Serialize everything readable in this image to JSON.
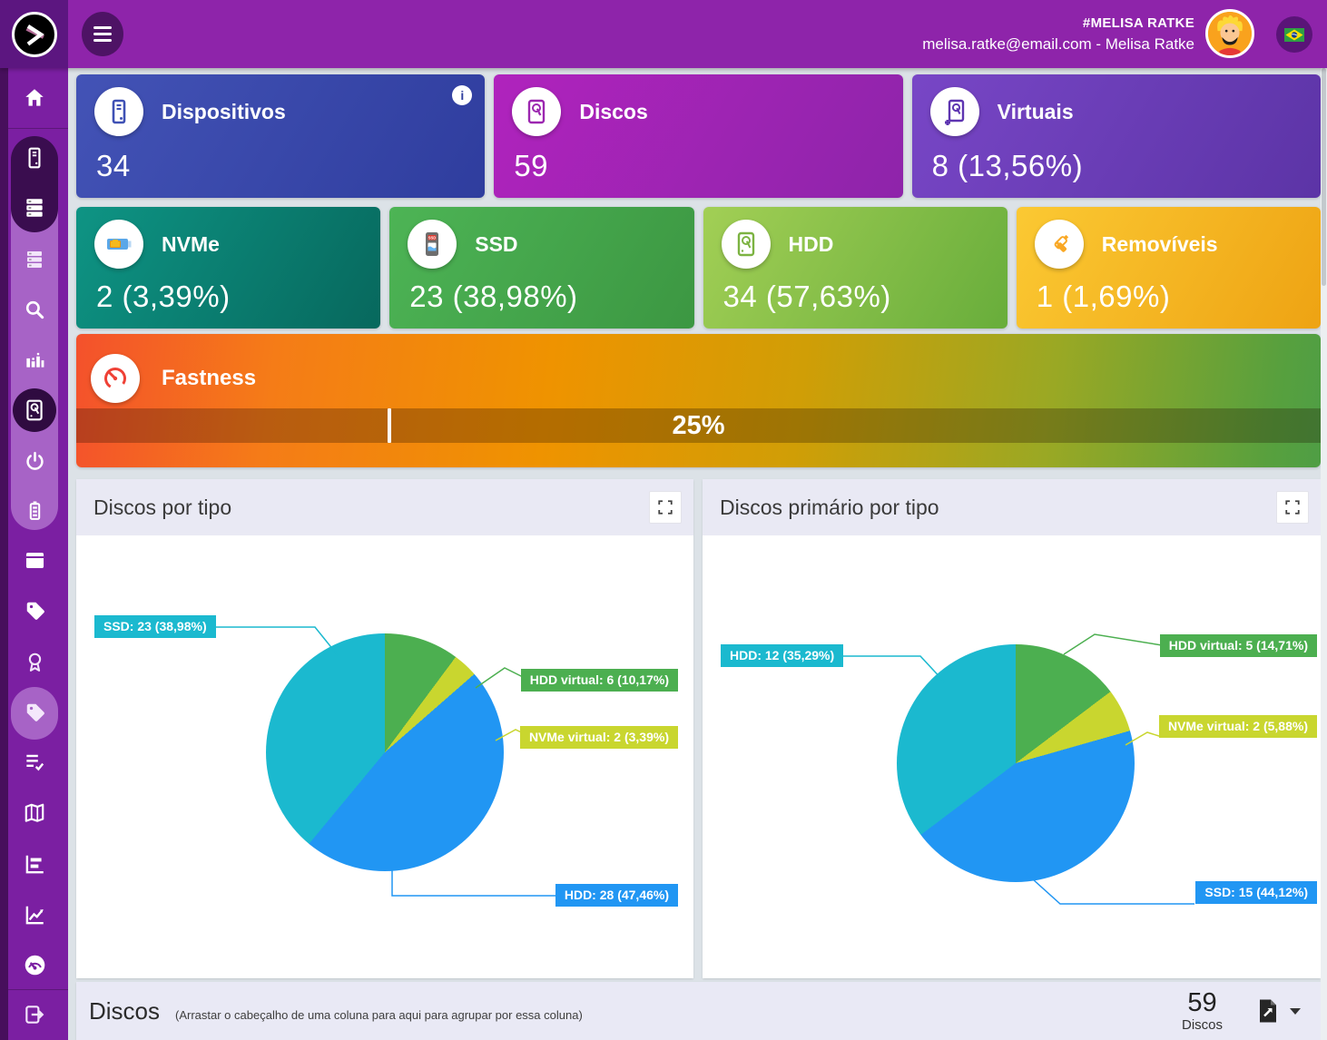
{
  "topbar": {
    "user_name_line": "#MELISA RATKE",
    "user_email_line": "melisa.ratke@email.com - Melisa Ratke"
  },
  "sidebar": {
    "items": [
      "home",
      "devices",
      "disks",
      "disks-list",
      "search",
      "statistics",
      "disk-active",
      "power",
      "battery",
      "window",
      "tag",
      "certificate",
      "tag-alt",
      "tasks",
      "map",
      "bar-chart",
      "line-chart",
      "gauge",
      "logout"
    ]
  },
  "cards": {
    "dispositivos": {
      "label": "Dispositivos",
      "value": "34",
      "icon": "device-tower-icon",
      "accent": "#3f51b5"
    },
    "discos": {
      "label": "Discos",
      "value": "59",
      "icon": "hard-disk-icon",
      "accent": "#9c27b0"
    },
    "virtuais": {
      "label": "Virtuais",
      "value": "8 (13,56%)",
      "icon": "virtual-disk-icon",
      "accent": "#5e35b1"
    },
    "nvme": {
      "label": "NVMe",
      "value": "2 (3,39%)",
      "icon": "nvme-icon",
      "accent": "#0e9484"
    },
    "ssd": {
      "label": "SSD",
      "value": "23 (38,98%)",
      "icon": "ssd-icon",
      "accent": "#43a047"
    },
    "hdd": {
      "label": "HDD",
      "value": "34 (57,63%)",
      "icon": "hdd-icon",
      "accent": "#7cb342"
    },
    "removiveis": {
      "label": "Removíveis",
      "value": "1 (1,69%)",
      "icon": "usb-drives-icon",
      "accent": "#f9a825"
    }
  },
  "fastness": {
    "label": "Fastness",
    "value_label": "25%",
    "percent": 25,
    "icon": "speedometer-icon"
  },
  "chart_data": [
    {
      "type": "pie",
      "title": "Discos por tipo",
      "total": 59,
      "legend_position": "outside-callout",
      "direction": "clockwise-from-top",
      "slices": [
        {
          "label": "HDD virtual",
          "value": 6,
          "percent_label": "10,17%",
          "display": "HDD virtual: 6 (10,17%)",
          "color": "#4caf50"
        },
        {
          "label": "NVMe virtual",
          "value": 2,
          "percent_label": "3,39%",
          "display": "NVMe virtual: 2 (3,39%)",
          "color": "#c9d62f"
        },
        {
          "label": "HDD",
          "value": 28,
          "percent_label": "47,46%",
          "display": "HDD: 28 (47,46%)",
          "color": "#2196f3"
        },
        {
          "label": "SSD",
          "value": 23,
          "percent_label": "38,98%",
          "display": "SSD: 23 (38,98%)",
          "color": "#1bb9cf"
        }
      ]
    },
    {
      "type": "pie",
      "title": "Discos primário por tipo",
      "total": 34,
      "legend_position": "outside-callout",
      "direction": "clockwise-from-top",
      "slices": [
        {
          "label": "HDD virtual",
          "value": 5,
          "percent_label": "14,71%",
          "display": "HDD virtual: 5 (14,71%)",
          "color": "#4caf50"
        },
        {
          "label": "NVMe virtual",
          "value": 2,
          "percent_label": "5,88%",
          "display": "NVMe virtual: 2 (5,88%)",
          "color": "#c9d62f"
        },
        {
          "label": "SSD",
          "value": 15,
          "percent_label": "44,12%",
          "display": "SSD: 15 (44,12%)",
          "color": "#2196f3"
        },
        {
          "label": "HDD",
          "value": 12,
          "percent_label": "35,29%",
          "display": "HDD: 12 (35,29%)",
          "color": "#1bb9cf"
        }
      ]
    }
  ],
  "table_bar": {
    "title": "Discos",
    "hint": "(Arrastar o cabeçalho de uma coluna para aqui para agrupar por essa coluna)",
    "count": "59",
    "count_unit": "Discos",
    "export_icon": "export-file-icon"
  }
}
